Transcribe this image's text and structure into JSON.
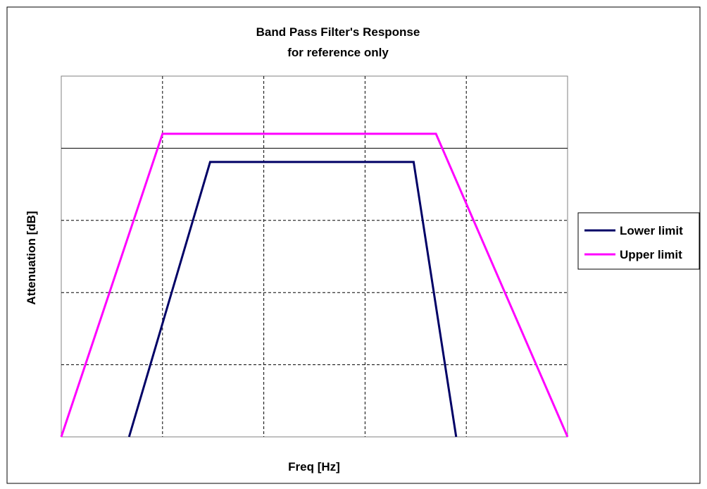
{
  "chart_data": {
    "type": "line",
    "title": "Band Pass Filter's Response",
    "subtitle": "for reference only",
    "xlabel": "Freq [Hz]",
    "ylabel": "Attenuation [dB]",
    "xlim": [
      0,
      5
    ],
    "ylim": [
      0,
      5
    ],
    "x_tick_labels": [],
    "y_tick_labels": [],
    "grid": true,
    "reference_line_y": 4,
    "legend_position": "right",
    "series": [
      {
        "name": "Lower limit",
        "color": "#000066",
        "x": [
          0.67,
          1.47,
          3.48,
          3.9
        ],
        "y": [
          0,
          3.81,
          3.81,
          0
        ]
      },
      {
        "name": "Upper limit",
        "color": "#ff00ff",
        "x": [
          0,
          1.0,
          3.7,
          5.0
        ],
        "y": [
          0,
          4.2,
          4.2,
          0
        ]
      }
    ]
  }
}
